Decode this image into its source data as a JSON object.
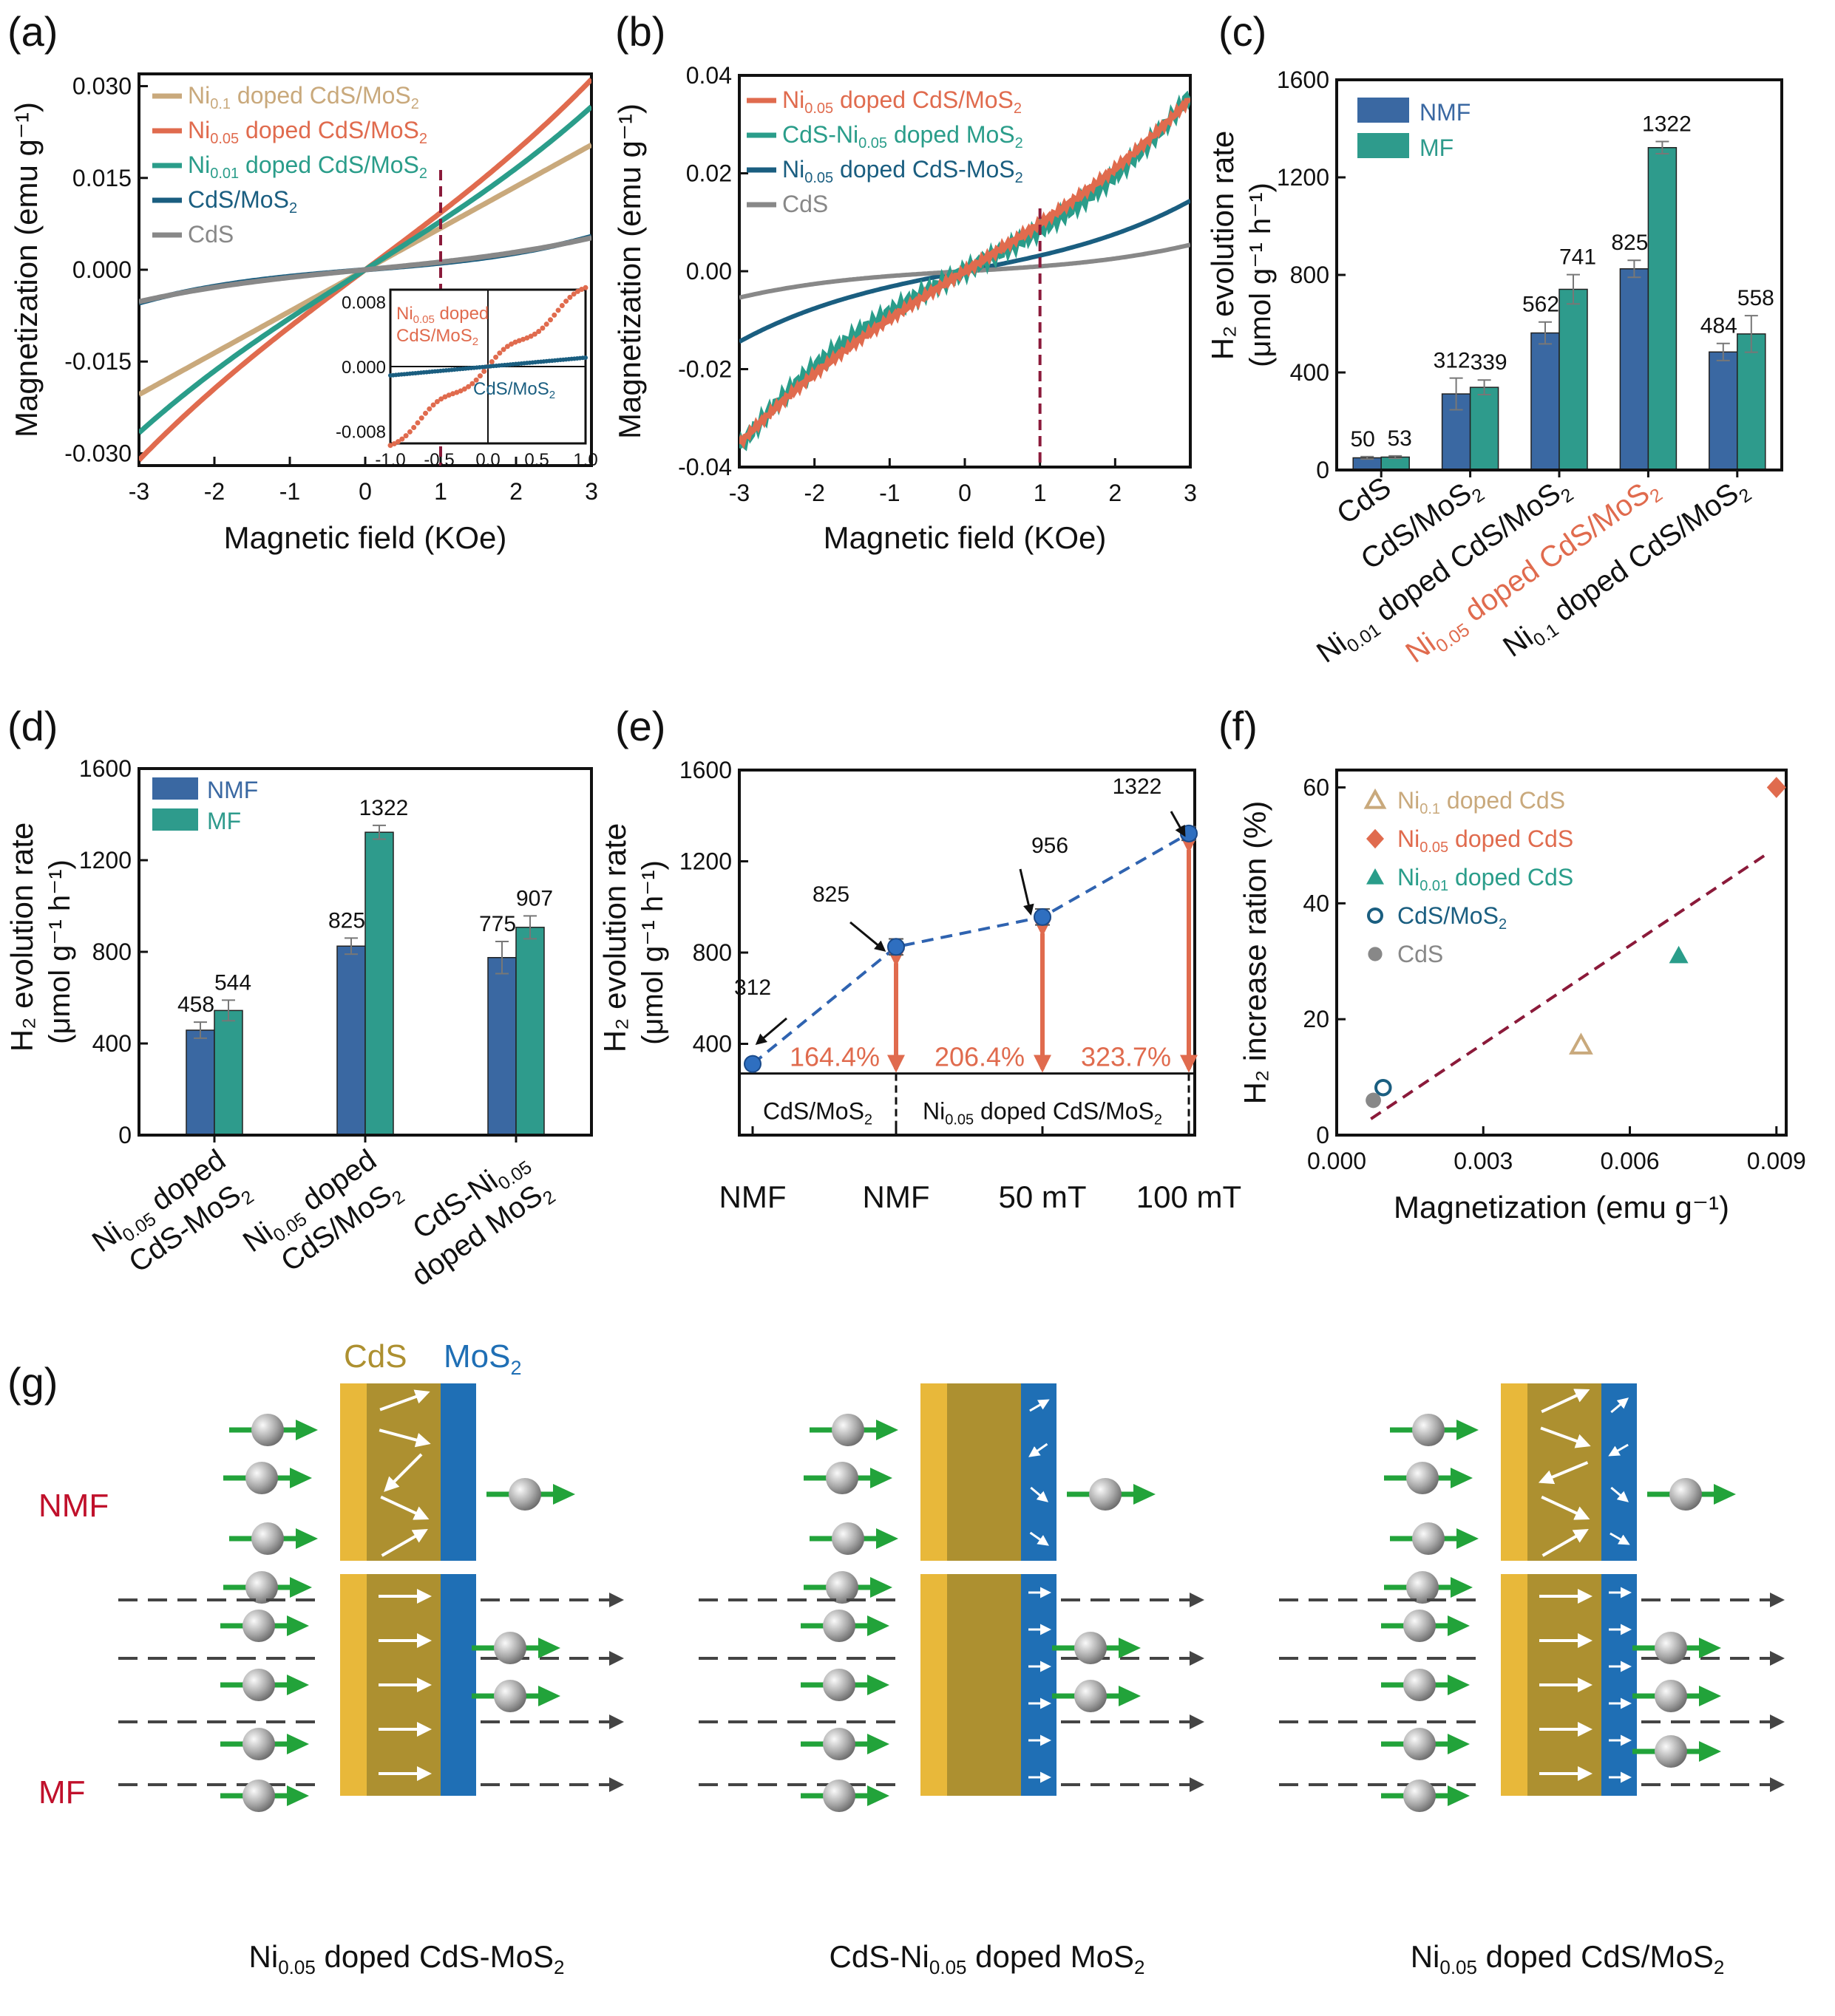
{
  "colors": {
    "ni01": "#c9a97c",
    "ni05": "#e06b4e",
    "ni001": "#2a9d8a",
    "cdsmos": "#1a5e80",
    "cds": "#888888",
    "nmf": "#3a68a2",
    "mf": "#2e9b8c",
    "vline": "#8b1a3a",
    "cds_layer": "#e8b83a",
    "cds_body": "#ad9030",
    "mos_layer": "#1f6fb5",
    "spin": "#22a33a",
    "label_red": "#c0102b"
  },
  "panels": {
    "a": "(a)",
    "b": "(b)",
    "c": "(c)",
    "d": "(d)",
    "e": "(e)",
    "f": "(f)",
    "g": "(g)"
  },
  "chart_data": [
    {
      "id": "a",
      "type": "line",
      "xlabel": "Magnetic field (KOe)",
      "ylabel": "Magnetization (emu g⁻¹)",
      "xlim": [
        -3,
        3
      ],
      "ylim": [
        -0.032,
        0.032
      ],
      "xticks": [
        "-3",
        "-2",
        "-1",
        "0",
        "1",
        "2",
        "3"
      ],
      "yticks": [
        "0.030",
        "0.015",
        "0.000",
        "-0.015",
        "-0.030"
      ],
      "vline_x": 1,
      "series": [
        {
          "name": "Ni0.1 doped CdS/MoS2",
          "slope": 0.0068,
          "cube": 0.0
        },
        {
          "name": "Ni0.05 doped CdS/MoS2",
          "slope": 0.0092,
          "cube": 0.00013
        },
        {
          "name": "Ni0.01 doped CdS/MoS2",
          "slope": 0.0078,
          "cube": 0.00012
        },
        {
          "name": "CdS/MoS2",
          "slope": 0.001,
          "cube": 9e-05
        },
        {
          "name": "CdS",
          "slope": 0.0012,
          "cube": 6e-05
        }
      ],
      "legend": [
        {
          "pre": "Ni",
          "sub": "0.1",
          "post": "  doped CdS/MoS",
          "sub2": "2"
        },
        {
          "pre": "Ni",
          "sub": "0.05",
          "post": " doped CdS/MoS",
          "sub2": "2"
        },
        {
          "pre": "Ni",
          "sub": "0.01",
          "post": " doped CdS/MoS",
          "sub2": "2"
        },
        {
          "pre": "CdS/MoS",
          "sub": "2",
          "post": "",
          "sub2": ""
        },
        {
          "pre": "CdS",
          "sub": "",
          "post": "",
          "sub2": ""
        }
      ],
      "inset": {
        "xlim": [
          -1,
          1
        ],
        "ylim": [
          -0.0095,
          0.0095
        ],
        "xticks": [
          "-1.0",
          "-0.5",
          "0.0",
          "0.5",
          "1.0"
        ],
        "yticks": [
          "0.008",
          "0.000",
          "-0.008"
        ],
        "label1": "Ni",
        "label1sub": "0.05",
        "label1b": " doped",
        "label1c": "CdS/MoS",
        "label1csub": "2",
        "label2": "CdS/MoS",
        "label2sub": "2"
      }
    },
    {
      "id": "b",
      "type": "line",
      "xlabel": "Magnetic field (KOe)",
      "ylabel": "Magnetization (emu g⁻¹)",
      "xlim": [
        -3,
        3
      ],
      "ylim": [
        -0.04,
        0.04
      ],
      "xticks": [
        "-3",
        "-2",
        "-1",
        "0",
        "1",
        "2",
        "3"
      ],
      "yticks": [
        "0.04",
        "0.02",
        "0.00",
        "-0.02",
        "-0.04"
      ],
      "vline_x": 1,
      "series": [
        {
          "name": "Ni0.05 doped CdS/MoS2",
          "slope": 0.0095,
          "cube": 0.00025
        },
        {
          "name": "CdS-Ni0.05 doped MoS2",
          "slope": 0.008,
          "cube": 0.00045
        },
        {
          "name": "Ni0.05 doped CdS-MoS2",
          "slope": 0.003,
          "cube": 0.0002
        },
        {
          "name": "CdS",
          "slope": 0.0009,
          "cube": 0.0001
        }
      ],
      "legend": [
        {
          "pre": "Ni",
          "sub": "0.05",
          "post": " doped CdS/MoS",
          "sub2": "2",
          "post2": ""
        },
        {
          "pre": "CdS-Ni",
          "sub": "0.05",
          "post": " doped MoS",
          "sub2": "2",
          "post2": ""
        },
        {
          "pre": "Ni",
          "sub": "0.05",
          "post": " doped CdS-MoS",
          "sub2": "2",
          "post2": ""
        },
        {
          "pre": "CdS",
          "sub": "",
          "post": "",
          "sub2": "",
          "post2": ""
        }
      ]
    },
    {
      "id": "c",
      "type": "bar",
      "ylabel": "H₂ evolution rate (μmol g⁻¹ h⁻¹)",
      "ylim": [
        0,
        1600
      ],
      "yticks": [
        "0",
        "400",
        "800",
        "1200",
        "1600"
      ],
      "categories": [
        "CdS",
        "CdS/MoS2",
        "Ni0.01 doped CdS/MoS2",
        "Ni0.05 doped CdS/MoS2",
        "Ni0.1 doped CdS/MoS2"
      ],
      "cat_labels": [
        {
          "pre": "CdS",
          "sub": "",
          "post": "",
          "sub2": ""
        },
        {
          "pre": "CdS/MoS",
          "sub": "2",
          "post": "",
          "sub2": ""
        },
        {
          "pre": "Ni",
          "sub": "0.01",
          "post": " doped CdS/MoS",
          "sub2": "2"
        },
        {
          "pre": "Ni",
          "sub": "0.05",
          "post": " doped CdS/MoS",
          "sub2": "2"
        },
        {
          "pre": "Ni",
          "sub": "0.1",
          "post": " doped CdS/MoS",
          "sub2": "2"
        }
      ],
      "series": [
        {
          "name": "NMF",
          "values": [
            50,
            312,
            562,
            825,
            484
          ],
          "err": [
            5,
            65,
            45,
            35,
            35
          ]
        },
        {
          "name": "MF",
          "values": [
            53,
            339,
            741,
            1322,
            558
          ],
          "err": [
            5,
            30,
            60,
            25,
            75
          ]
        }
      ],
      "labels": [
        [
          "50",
          "312",
          "562",
          "825",
          "484"
        ],
        [
          "53",
          "339",
          "741",
          "1322",
          "558"
        ]
      ]
    },
    {
      "id": "d",
      "type": "bar",
      "ylabel": "H₂ evolution rate (μmol g⁻¹ h⁻¹)",
      "ylim": [
        0,
        1600
      ],
      "yticks": [
        "0",
        "400",
        "800",
        "1200",
        "1600"
      ],
      "categories": [
        "Ni0.05 doped CdS-MoS2",
        "Ni0.05 doped CdS/MoS2",
        "CdS-Ni0.05 doped MoS2"
      ],
      "cat_labels": [
        [
          {
            "pre": "Ni",
            "sub": "0.05",
            "post": " doped"
          },
          {
            "pre": "CdS-MoS",
            "sub": "2",
            "post": ""
          }
        ],
        [
          {
            "pre": "Ni",
            "sub": "0.05",
            "post": " doped"
          },
          {
            "pre": "CdS/MoS",
            "sub": "2",
            "post": ""
          }
        ],
        [
          {
            "pre": "CdS-Ni",
            "sub": "0.05",
            "post": ""
          },
          {
            "pre": "doped MoS",
            "sub": "2",
            "post": ""
          }
        ]
      ],
      "series": [
        {
          "name": "NMF",
          "values": [
            458,
            825,
            775
          ],
          "err": [
            35,
            35,
            70
          ]
        },
        {
          "name": "MF",
          "values": [
            544,
            1322,
            907
          ],
          "err": [
            45,
            30,
            50
          ]
        }
      ],
      "labels": [
        [
          "458",
          "825",
          "775"
        ],
        [
          "544",
          "1322",
          "907"
        ]
      ]
    },
    {
      "id": "e",
      "type": "line",
      "ylabel": "H₂ evolution rate (μmol g⁻¹ h⁻¹)",
      "ylim": [
        0,
        1600
      ],
      "yticks": [
        "400",
        "800",
        "1200",
        "1600"
      ],
      "categories": [
        "NMF",
        "NMF",
        "50 mT",
        "100 mT"
      ],
      "values": [
        312,
        825,
        956,
        1322
      ],
      "err": [
        15,
        35,
        35,
        30
      ],
      "point_labels": [
        "312",
        "825",
        "956",
        "1322"
      ],
      "percents": [
        "164.4%",
        "206.4%",
        "323.7%"
      ],
      "box_labels": [
        {
          "pre": "CdS/MoS",
          "sub": "2",
          "post": "",
          "sub2": ""
        },
        {
          "pre": "Ni",
          "sub": "0.05",
          "post": " doped CdS/MoS",
          "sub2": "2"
        }
      ]
    },
    {
      "id": "f",
      "type": "scatter",
      "xlabel": "Magnetization (emu g⁻¹)",
      "ylabel": "H₂ increase ration (%)",
      "xlim": [
        0,
        0.0092
      ],
      "ylim": [
        0,
        63
      ],
      "xticks": [
        "0.000",
        "0.003",
        "0.006",
        "0.009"
      ],
      "yticks": [
        "0",
        "20",
        "40",
        "60"
      ],
      "points": [
        {
          "name": "Ni0.1 doped CdS",
          "x": 0.005,
          "y": 15.5,
          "marker": "tri-open"
        },
        {
          "name": "Ni0.05 doped CdS",
          "x": 0.009,
          "y": 60,
          "marker": "diamond"
        },
        {
          "name": "Ni0.01 doped CdS",
          "x": 0.007,
          "y": 31,
          "marker": "tri"
        },
        {
          "name": "CdS/MoS2",
          "x": 0.00095,
          "y": 8.2,
          "marker": "circle-open"
        },
        {
          "name": "CdS",
          "x": 0.00075,
          "y": 6,
          "marker": "circle"
        }
      ],
      "fit": [
        [
          0.0007,
          2.8
        ],
        [
          0.0088,
          48.5
        ]
      ],
      "legend": [
        {
          "pre": "Ni",
          "sub": "0.1",
          "post": "  doped CdS",
          "sub2": ""
        },
        {
          "pre": "Ni",
          "sub": "0.05",
          "post": " doped CdS",
          "sub2": ""
        },
        {
          "pre": "Ni",
          "sub": "0.01",
          "post": " doped CdS",
          "sub2": ""
        },
        {
          "pre": "CdS/MoS",
          "sub": "2",
          "post": "",
          "sub2": ""
        },
        {
          "pre": "CdS",
          "sub": "",
          "post": "",
          "sub2": ""
        }
      ]
    }
  ],
  "schematic": {
    "cds": "CdS",
    "mos": "MoS",
    "mos_sub": "2",
    "nmf": "NMF",
    "mf": "MF",
    "captions": [
      {
        "pre": "Ni",
        "sub": "0.05",
        "post": " doped CdS-MoS",
        "sub2": "2"
      },
      {
        "pre": "CdS-Ni",
        "sub": "0.05",
        "post": " doped MoS",
        "sub2": "2"
      },
      {
        "pre": "Ni",
        "sub": "0.05",
        "post": " doped CdS/MoS",
        "sub2": "2"
      }
    ],
    "nmf_cds_angles": [
      [
        -20,
        -15,
        -30,
        -25,
        -30
      ],
      [],
      [
        -25,
        -20,
        -35,
        -25,
        -30
      ]
    ],
    "nmf_mos_angles": [
      [],
      [
        -30,
        145,
        40,
        35
      ],
      [
        -40,
        150,
        40,
        30
      ]
    ]
  }
}
